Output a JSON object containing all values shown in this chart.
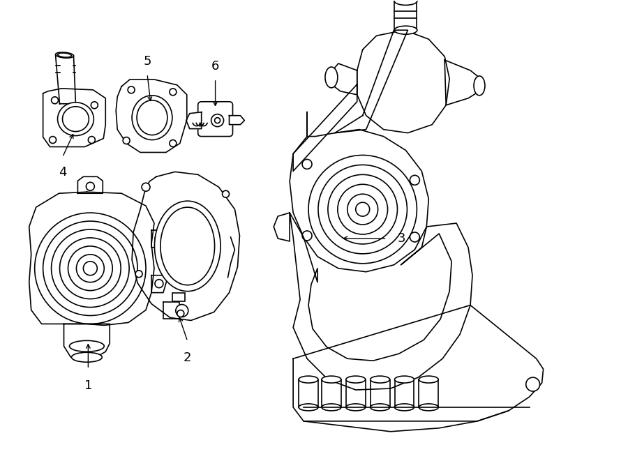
{
  "background_color": "#ffffff",
  "line_color": "#000000",
  "lw": 1.2,
  "fig_width": 9.0,
  "fig_height": 6.61,
  "dpi": 100,
  "label_font_size": 13
}
